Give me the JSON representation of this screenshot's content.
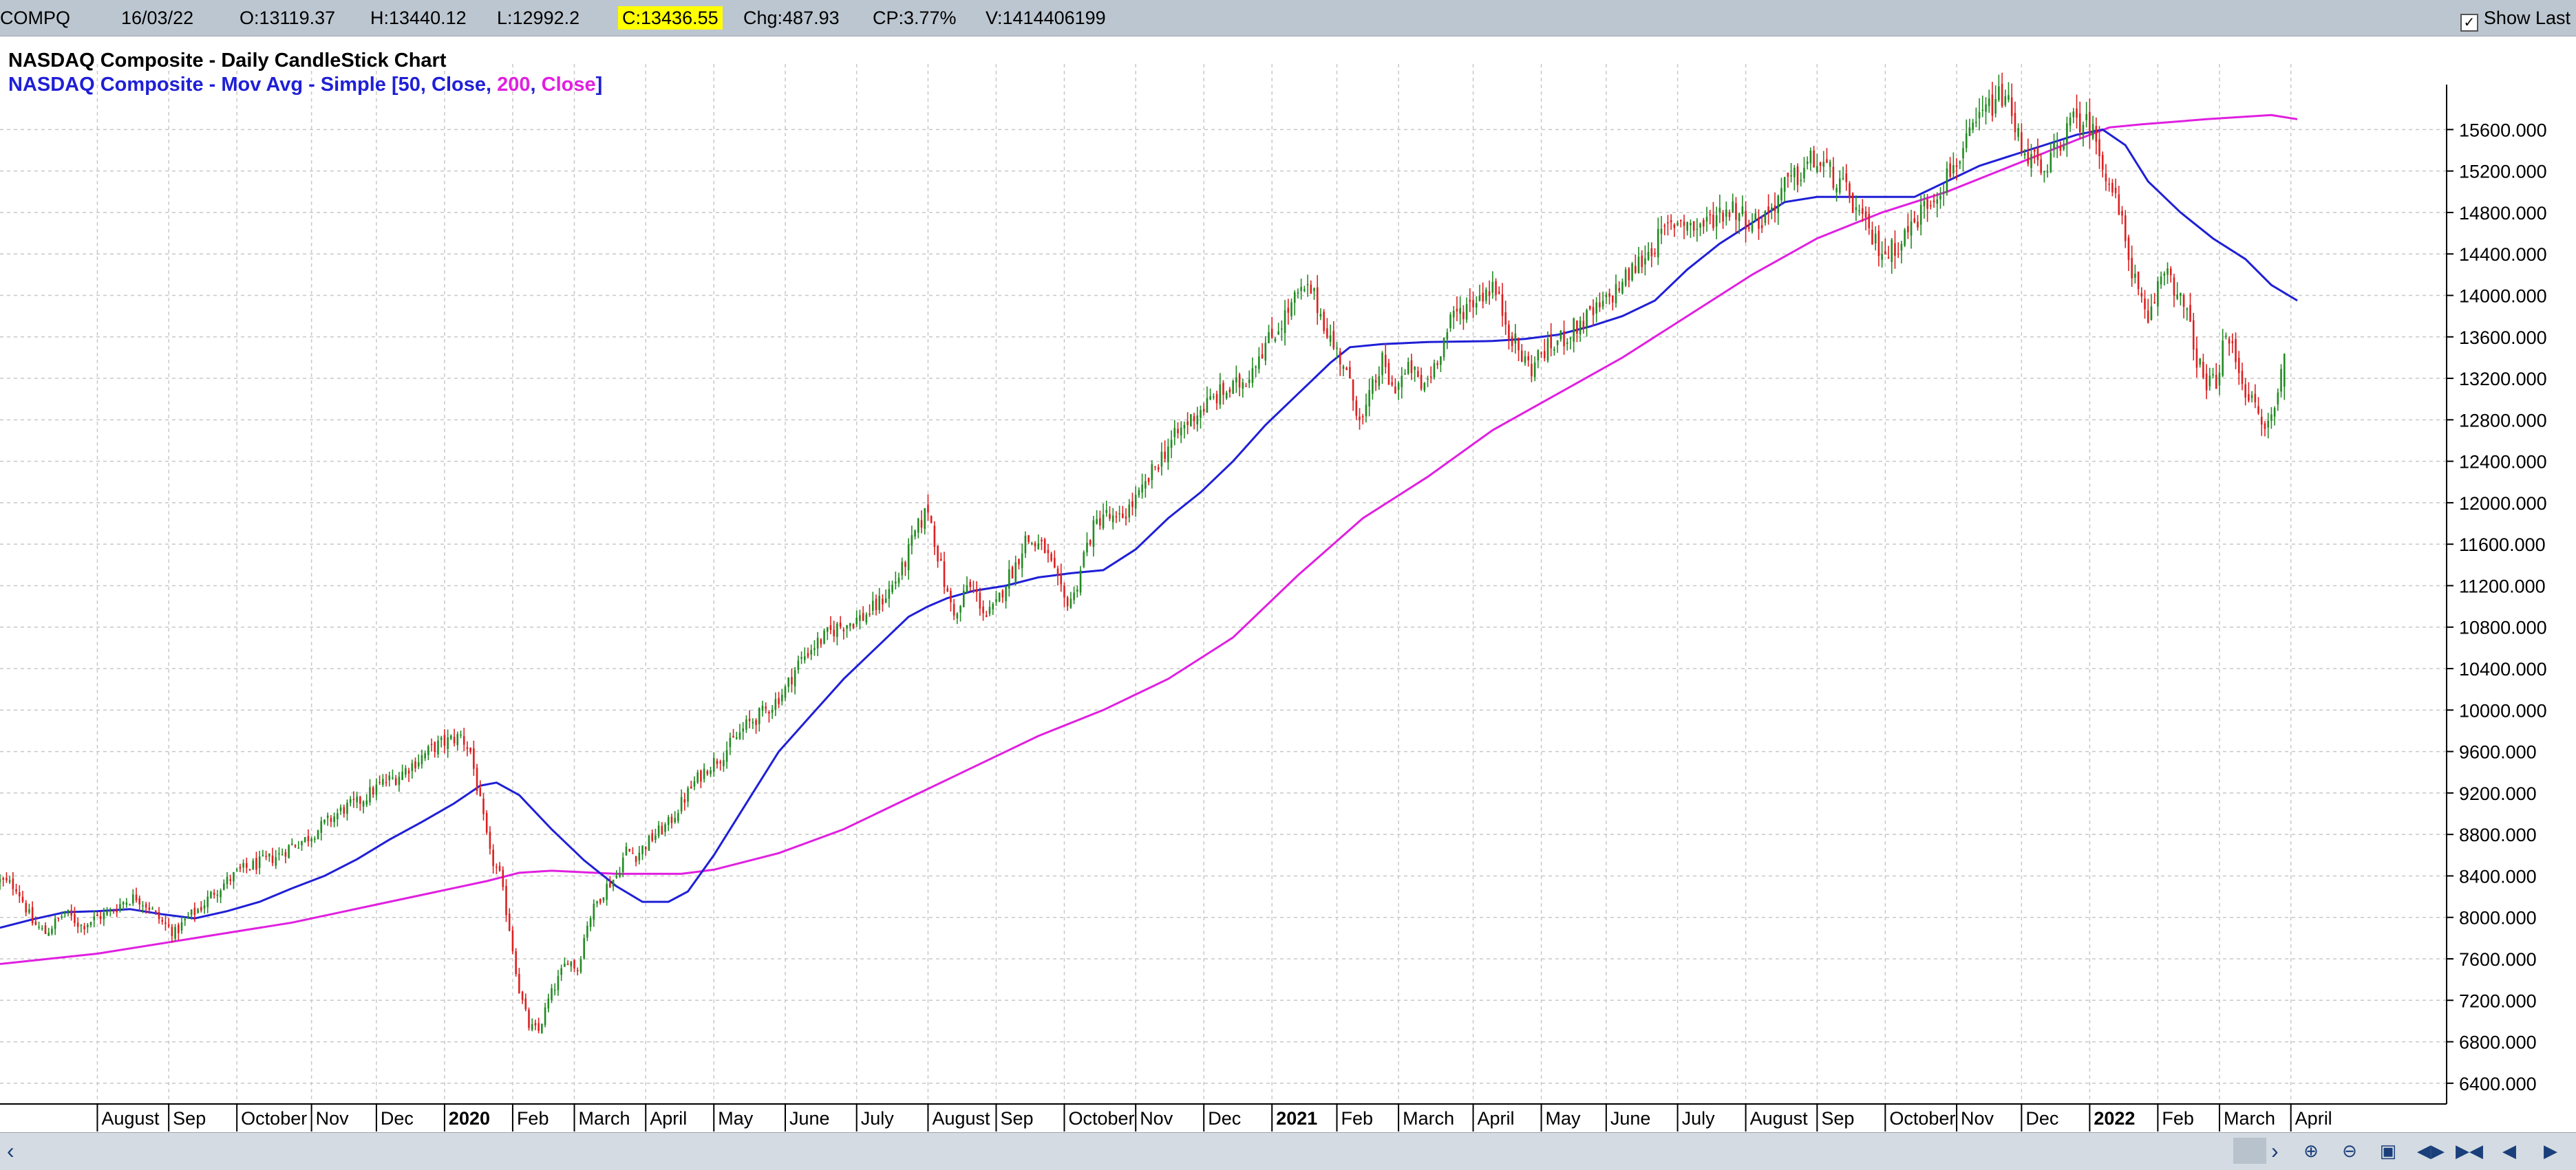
{
  "topbar": {
    "symbol": "COMPQ",
    "date": "16/03/22",
    "open": "O:13119.37",
    "high": "H:13440.12",
    "low": "L:12992.2",
    "close": "C:13436.55",
    "change": "Chg:487.93",
    "change_pct": "CP:3.77%",
    "volume": "V:1414406199",
    "show_last": "Show Last"
  },
  "colors": {
    "up": "#228b22",
    "down": "#dc2020",
    "ma50": "#1f1fd6",
    "ma200": "#e020e0",
    "close_highlight": "#ffff00"
  },
  "icons": [
    "scroll-left-icon",
    "scroll-right-icon",
    "zoom-in-icon",
    "zoom-out-icon",
    "chart-settings-icon",
    "first-icon",
    "last-icon",
    "prev-icon",
    "next-icon"
  ],
  "chart_data": {
    "type": "candlestick",
    "title": "NASDAQ Composite - Daily CandleStick Chart",
    "legend": {
      "prefix": "NASDAQ Composite - Mov Avg - Simple [",
      "ma50_period": "50",
      "ma50_field": "Close",
      "ma200_period": "200",
      "ma200_field": "Close",
      "suffix": "]",
      "separator": ", "
    },
    "y_ticks": [
      6400,
      6800,
      7200,
      7600,
      8000,
      8400,
      8800,
      9200,
      9600,
      10000,
      10400,
      10800,
      11200,
      11600,
      12000,
      12400,
      12800,
      13200,
      13600,
      14000,
      14400,
      14800,
      15200,
      15600
    ],
    "y_tick_labels": [
      "6400.000",
      "6800.000",
      "7200.000",
      "7600.000",
      "8000.000",
      "8400.000",
      "8800.000",
      "9200.000",
      "9600.000",
      "10000.000",
      "10400.000",
      "10800.000",
      "11200.000",
      "11600.000",
      "12000.000",
      "12400.000",
      "12800.000",
      "13200.000",
      "13600.000",
      "14000.000",
      "14400.000",
      "14800.000",
      "15200.000",
      "15600.000"
    ],
    "ylim": [
      6200,
      16100
    ],
    "x_labels": [
      {
        "label": "August",
        "bold": false,
        "day": 30
      },
      {
        "label": "Sep",
        "bold": false,
        "day": 52
      },
      {
        "label": "October",
        "bold": false,
        "day": 73
      },
      {
        "label": "Nov",
        "bold": false,
        "day": 96
      },
      {
        "label": "Dec",
        "bold": false,
        "day": 116
      },
      {
        "label": "2020",
        "bold": true,
        "day": 137
      },
      {
        "label": "Feb",
        "bold": false,
        "day": 158
      },
      {
        "label": "March",
        "bold": false,
        "day": 177
      },
      {
        "label": "April",
        "bold": false,
        "day": 199
      },
      {
        "label": "May",
        "bold": false,
        "day": 220
      },
      {
        "label": "June",
        "bold": false,
        "day": 242
      },
      {
        "label": "July",
        "bold": false,
        "day": 264
      },
      {
        "label": "August",
        "bold": false,
        "day": 286
      },
      {
        "label": "Sep",
        "bold": false,
        "day": 307
      },
      {
        "label": "October",
        "bold": false,
        "day": 328
      },
      {
        "label": "Nov",
        "bold": false,
        "day": 350
      },
      {
        "label": "Dec",
        "bold": false,
        "day": 371
      },
      {
        "label": "2021",
        "bold": true,
        "day": 392
      },
      {
        "label": "Feb",
        "bold": false,
        "day": 412
      },
      {
        "label": "March",
        "bold": false,
        "day": 431
      },
      {
        "label": "April",
        "bold": false,
        "day": 454
      },
      {
        "label": "May",
        "bold": false,
        "day": 475
      },
      {
        "label": "June",
        "bold": false,
        "day": 495
      },
      {
        "label": "July",
        "bold": false,
        "day": 517
      },
      {
        "label": "August",
        "bold": false,
        "day": 538
      },
      {
        "label": "Sep",
        "bold": false,
        "day": 560
      },
      {
        "label": "October",
        "bold": false,
        "day": 581
      },
      {
        "label": "Nov",
        "bold": false,
        "day": 603
      },
      {
        "label": "Dec",
        "bold": false,
        "day": 623
      },
      {
        "label": "2022",
        "bold": true,
        "day": 644
      },
      {
        "label": "Feb",
        "bold": false,
        "day": 665
      },
      {
        "label": "March",
        "bold": false,
        "day": 684
      },
      {
        "label": "April",
        "bold": false,
        "day": 706
      }
    ],
    "x_range_days": [
      0,
      754
    ],
    "close_path": [
      [
        0,
        8350
      ],
      [
        5,
        8300
      ],
      [
        10,
        7950
      ],
      [
        14,
        7850
      ],
      [
        20,
        8050
      ],
      [
        25,
        7920
      ],
      [
        30,
        8000
      ],
      [
        34,
        8050
      ],
      [
        38,
        8150
      ],
      [
        42,
        8200
      ],
      [
        46,
        8100
      ],
      [
        50,
        7950
      ],
      [
        54,
        7850
      ],
      [
        58,
        8000
      ],
      [
        62,
        8100
      ],
      [
        66,
        8250
      ],
      [
        70,
        8350
      ],
      [
        74,
        8450
      ],
      [
        78,
        8500
      ],
      [
        82,
        8550
      ],
      [
        86,
        8600
      ],
      [
        90,
        8700
      ],
      [
        94,
        8750
      ],
      [
        98,
        8850
      ],
      [
        102,
        8950
      ],
      [
        106,
        9050
      ],
      [
        110,
        9100
      ],
      [
        114,
        9200
      ],
      [
        118,
        9300
      ],
      [
        122,
        9350
      ],
      [
        126,
        9450
      ],
      [
        130,
        9550
      ],
      [
        134,
        9650
      ],
      [
        138,
        9700
      ],
      [
        142,
        9750
      ],
      [
        145,
        9600
      ],
      [
        148,
        9100
      ],
      [
        151,
        8600
      ],
      [
        154,
        8400
      ],
      [
        157,
        7900
      ],
      [
        160,
        7300
      ],
      [
        163,
        6950
      ],
      [
        166,
        6900
      ],
      [
        169,
        7200
      ],
      [
        172,
        7400
      ],
      [
        175,
        7600
      ],
      [
        178,
        7500
      ],
      [
        181,
        7950
      ],
      [
        184,
        8150
      ],
      [
        187,
        8300
      ],
      [
        190,
        8400
      ],
      [
        193,
        8650
      ],
      [
        196,
        8600
      ],
      [
        199,
        8700
      ],
      [
        202,
        8800
      ],
      [
        206,
        8900
      ],
      [
        210,
        9100
      ],
      [
        214,
        9300
      ],
      [
        218,
        9450
      ],
      [
        222,
        9550
      ],
      [
        226,
        9700
      ],
      [
        230,
        9850
      ],
      [
        234,
        9950
      ],
      [
        238,
        10050
      ],
      [
        242,
        10200
      ],
      [
        246,
        10450
      ],
      [
        250,
        10600
      ],
      [
        254,
        10700
      ],
      [
        258,
        10800
      ],
      [
        262,
        10850
      ],
      [
        266,
        10900
      ],
      [
        270,
        11000
      ],
      [
        274,
        11150
      ],
      [
        278,
        11350
      ],
      [
        282,
        11700
      ],
      [
        286,
        11950
      ],
      [
        289,
        11500
      ],
      [
        292,
        11100
      ],
      [
        295,
        10900
      ],
      [
        298,
        11200
      ],
      [
        301,
        11100
      ],
      [
        304,
        10900
      ],
      [
        307,
        11000
      ],
      [
        310,
        11250
      ],
      [
        313,
        11400
      ],
      [
        316,
        11650
      ],
      [
        319,
        11600
      ],
      [
        322,
        11550
      ],
      [
        325,
        11300
      ],
      [
        328,
        11050
      ],
      [
        331,
        11100
      ],
      [
        334,
        11500
      ],
      [
        337,
        11750
      ],
      [
        340,
        11900
      ],
      [
        344,
        11800
      ],
      [
        348,
        11950
      ],
      [
        352,
        12100
      ],
      [
        356,
        12350
      ],
      [
        360,
        12550
      ],
      [
        364,
        12700
      ],
      [
        368,
        12850
      ],
      [
        372,
        12950
      ],
      [
        376,
        13050
      ],
      [
        380,
        13100
      ],
      [
        384,
        13200
      ],
      [
        388,
        13450
      ],
      [
        392,
        13600
      ],
      [
        396,
        13800
      ],
      [
        400,
        14000
      ],
      [
        404,
        14050
      ],
      [
        408,
        13750
      ],
      [
        411,
        13500
      ],
      [
        414,
        13350
      ],
      [
        417,
        13000
      ],
      [
        420,
        12800
      ],
      [
        423,
        13100
      ],
      [
        426,
        13350
      ],
      [
        429,
        13100
      ],
      [
        432,
        13200
      ],
      [
        435,
        13300
      ],
      [
        438,
        13100
      ],
      [
        441,
        13250
      ],
      [
        444,
        13500
      ],
      [
        448,
        13800
      ],
      [
        452,
        13900
      ],
      [
        456,
        14000
      ],
      [
        460,
        14100
      ],
      [
        463,
        13850
      ],
      [
        466,
        13600
      ],
      [
        469,
        13400
      ],
      [
        472,
        13300
      ],
      [
        475,
        13450
      ],
      [
        478,
        13500
      ],
      [
        482,
        13600
      ],
      [
        486,
        13700
      ],
      [
        490,
        13800
      ],
      [
        494,
        13900
      ],
      [
        498,
        14050
      ],
      [
        502,
        14200
      ],
      [
        506,
        14350
      ],
      [
        510,
        14500
      ],
      [
        514,
        14650
      ],
      [
        518,
        14750
      ],
      [
        522,
        14650
      ],
      [
        526,
        14700
      ],
      [
        530,
        14800
      ],
      [
        534,
        14850
      ],
      [
        538,
        14750
      ],
      [
        542,
        14700
      ],
      [
        546,
        14850
      ],
      [
        550,
        15050
      ],
      [
        554,
        15150
      ],
      [
        558,
        15300
      ],
      [
        562,
        15250
      ],
      [
        566,
        15100
      ],
      [
        570,
        14950
      ],
      [
        574,
        14700
      ],
      [
        578,
        14500
      ],
      [
        582,
        14400
      ],
      [
        586,
        14550
      ],
      [
        590,
        14700
      ],
      [
        594,
        14900
      ],
      [
        598,
        15050
      ],
      [
        602,
        15250
      ],
      [
        606,
        15450
      ],
      [
        610,
        15700
      ],
      [
        614,
        15850
      ],
      [
        618,
        15950
      ],
      [
        621,
        15600
      ],
      [
        624,
        15400
      ],
      [
        627,
        15300
      ],
      [
        630,
        15100
      ],
      [
        633,
        15400
      ],
      [
        636,
        15550
      ],
      [
        640,
        15700
      ],
      [
        644,
        15650
      ],
      [
        647,
        15400
      ],
      [
        650,
        15100
      ],
      [
        653,
        14800
      ],
      [
        656,
        14400
      ],
      [
        659,
        14000
      ],
      [
        662,
        13700
      ],
      [
        665,
        14100
      ],
      [
        668,
        14300
      ],
      [
        671,
        14000
      ],
      [
        674,
        13800
      ],
      [
        677,
        13400
      ],
      [
        680,
        13100
      ],
      [
        683,
        13200
      ],
      [
        686,
        13600
      ],
      [
        689,
        13400
      ],
      [
        692,
        13100
      ],
      [
        695,
        12900
      ],
      [
        698,
        12700
      ],
      [
        701,
        12900
      ],
      [
        704,
        13450
      ]
    ],
    "ma50_path": [
      [
        0,
        7900
      ],
      [
        10,
        7980
      ],
      [
        20,
        8050
      ],
      [
        30,
        8060
      ],
      [
        40,
        8080
      ],
      [
        50,
        8030
      ],
      [
        60,
        7990
      ],
      [
        70,
        8060
      ],
      [
        80,
        8150
      ],
      [
        90,
        8280
      ],
      [
        100,
        8400
      ],
      [
        110,
        8560
      ],
      [
        120,
        8750
      ],
      [
        130,
        8920
      ],
      [
        140,
        9100
      ],
      [
        148,
        9270
      ],
      [
        153,
        9300
      ],
      [
        160,
        9180
      ],
      [
        170,
        8850
      ],
      [
        180,
        8550
      ],
      [
        190,
        8300
      ],
      [
        198,
        8150
      ],
      [
        206,
        8150
      ],
      [
        212,
        8250
      ],
      [
        220,
        8600
      ],
      [
        230,
        9100
      ],
      [
        240,
        9600
      ],
      [
        250,
        9950
      ],
      [
        260,
        10300
      ],
      [
        270,
        10600
      ],
      [
        280,
        10900
      ],
      [
        286,
        11000
      ],
      [
        292,
        11080
      ],
      [
        300,
        11150
      ],
      [
        310,
        11200
      ],
      [
        320,
        11280
      ],
      [
        330,
        11320
      ],
      [
        340,
        11350
      ],
      [
        350,
        11550
      ],
      [
        360,
        11850
      ],
      [
        370,
        12100
      ],
      [
        380,
        12400
      ],
      [
        390,
        12750
      ],
      [
        400,
        13050
      ],
      [
        410,
        13350
      ],
      [
        416,
        13500
      ],
      [
        426,
        13530
      ],
      [
        440,
        13550
      ],
      [
        460,
        13560
      ],
      [
        470,
        13580
      ],
      [
        480,
        13620
      ],
      [
        490,
        13700
      ],
      [
        500,
        13800
      ],
      [
        510,
        13950
      ],
      [
        520,
        14250
      ],
      [
        530,
        14500
      ],
      [
        540,
        14700
      ],
      [
        550,
        14900
      ],
      [
        560,
        14950
      ],
      [
        570,
        14950
      ],
      [
        580,
        14950
      ],
      [
        590,
        14950
      ],
      [
        600,
        15100
      ],
      [
        610,
        15250
      ],
      [
        620,
        15350
      ],
      [
        630,
        15450
      ],
      [
        640,
        15550
      ],
      [
        648,
        15600
      ],
      [
        655,
        15450
      ],
      [
        662,
        15100
      ],
      [
        672,
        14800
      ],
      [
        682,
        14550
      ],
      [
        692,
        14350
      ],
      [
        700,
        14100
      ],
      [
        708,
        13950
      ]
    ],
    "ma200_path": [
      [
        0,
        7550
      ],
      [
        30,
        7650
      ],
      [
        60,
        7800
      ],
      [
        90,
        7950
      ],
      [
        120,
        8150
      ],
      [
        150,
        8350
      ],
      [
        160,
        8430
      ],
      [
        170,
        8450
      ],
      [
        190,
        8420
      ],
      [
        210,
        8420
      ],
      [
        220,
        8460
      ],
      [
        240,
        8620
      ],
      [
        260,
        8850
      ],
      [
        280,
        9150
      ],
      [
        300,
        9450
      ],
      [
        320,
        9750
      ],
      [
        340,
        10000
      ],
      [
        360,
        10300
      ],
      [
        380,
        10700
      ],
      [
        400,
        11300
      ],
      [
        420,
        11850
      ],
      [
        440,
        12250
      ],
      [
        460,
        12700
      ],
      [
        480,
        13050
      ],
      [
        500,
        13400
      ],
      [
        520,
        13800
      ],
      [
        540,
        14200
      ],
      [
        560,
        14550
      ],
      [
        580,
        14800
      ],
      [
        600,
        15000
      ],
      [
        620,
        15250
      ],
      [
        640,
        15500
      ],
      [
        650,
        15620
      ],
      [
        660,
        15650
      ],
      [
        680,
        15700
      ],
      [
        700,
        15740
      ],
      [
        708,
        15700
      ]
    ],
    "last_candle": {
      "day": 704,
      "open": 13119.37,
      "high": 13440.12,
      "low": 12992.2,
      "close": 13436.55
    }
  }
}
